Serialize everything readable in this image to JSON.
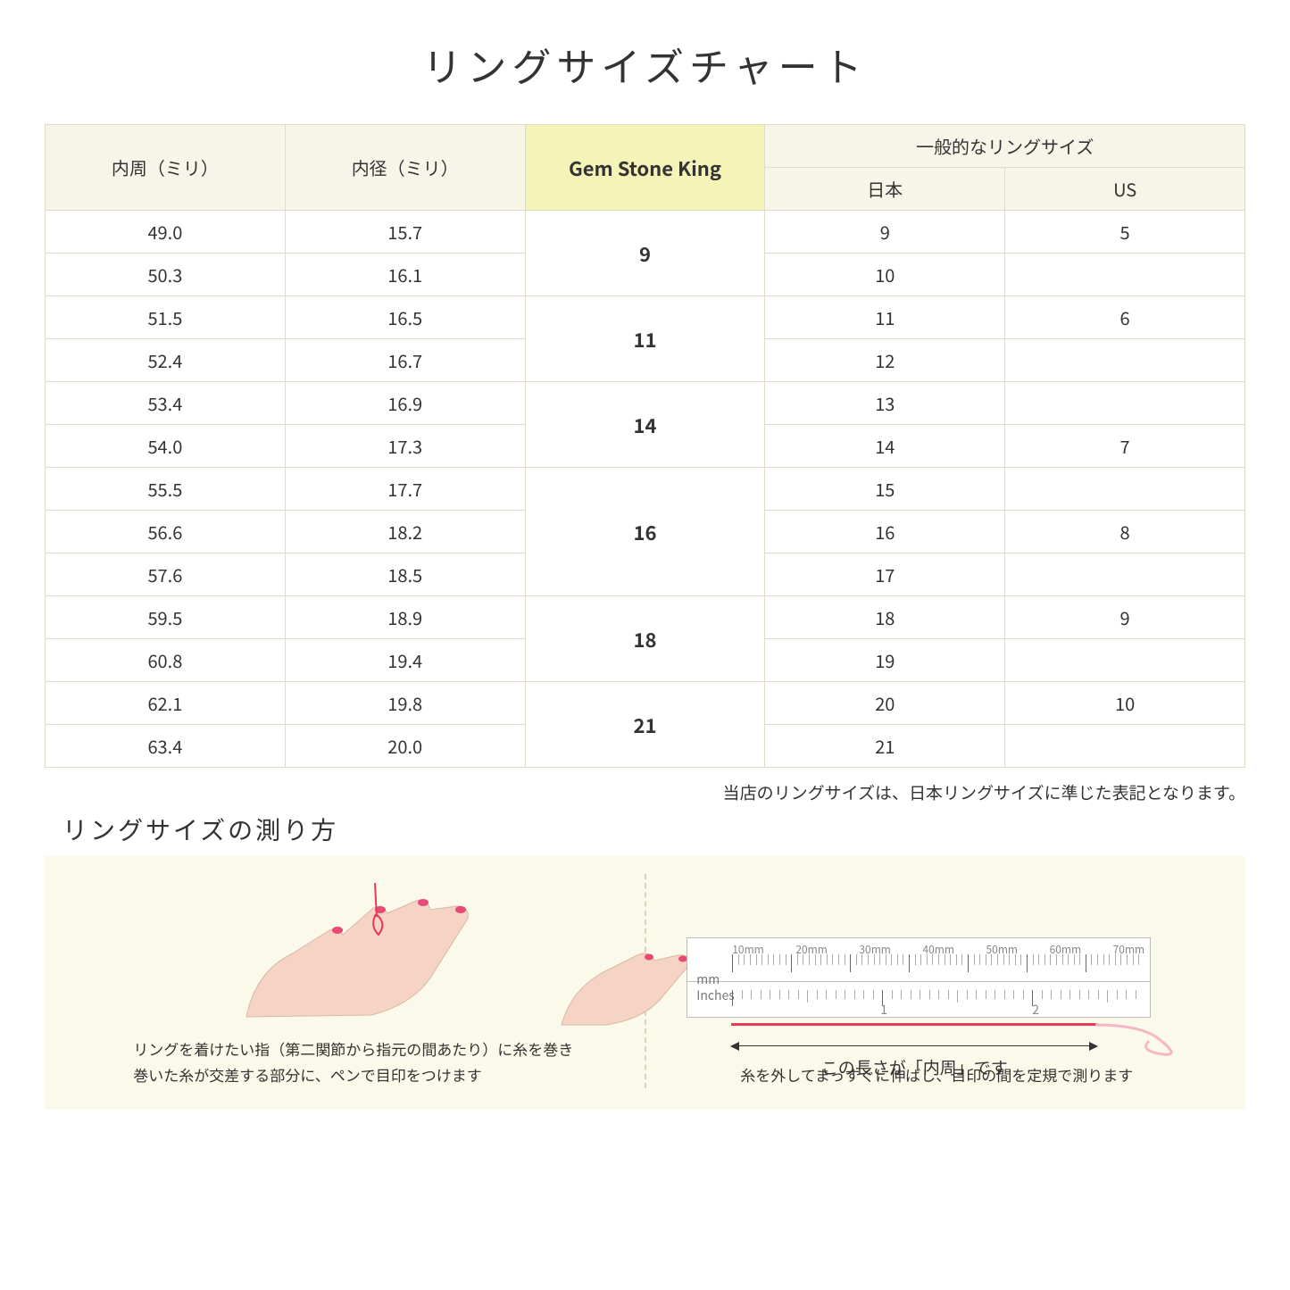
{
  "title": "リングサイズチャート",
  "headers": {
    "col1": "内周（ミリ）",
    "col2": "内径（ミリ）",
    "col3": "Gem Stone King",
    "col4_top": "一般的なリングサイズ",
    "col4_jp": "日本",
    "col4_us": "US"
  },
  "groups": [
    {
      "gsk": "9",
      "rows": [
        {
          "c": "49.0",
          "d": "15.7",
          "jp": "9",
          "us": "5"
        },
        {
          "c": "50.3",
          "d": "16.1",
          "jp": "10",
          "us": ""
        }
      ]
    },
    {
      "gsk": "11",
      "rows": [
        {
          "c": "51.5",
          "d": "16.5",
          "jp": "11",
          "us": "6"
        },
        {
          "c": "52.4",
          "d": "16.7",
          "jp": "12",
          "us": ""
        }
      ]
    },
    {
      "gsk": "14",
      "rows": [
        {
          "c": "53.4",
          "d": "16.9",
          "jp": "13",
          "us": ""
        },
        {
          "c": "54.0",
          "d": "17.3",
          "jp": "14",
          "us": "7"
        }
      ]
    },
    {
      "gsk": "16",
      "rows": [
        {
          "c": "55.5",
          "d": "17.7",
          "jp": "15",
          "us": ""
        },
        {
          "c": "56.6",
          "d": "18.2",
          "jp": "16",
          "us": "8"
        },
        {
          "c": "57.6",
          "d": "18.5",
          "jp": "17",
          "us": ""
        }
      ]
    },
    {
      "gsk": "18",
      "rows": [
        {
          "c": "59.5",
          "d": "18.9",
          "jp": "18",
          "us": "9"
        },
        {
          "c": "60.8",
          "d": "19.4",
          "jp": "19",
          "us": ""
        }
      ]
    },
    {
      "gsk": "21",
      "rows": [
        {
          "c": "62.1",
          "d": "19.8",
          "jp": "20",
          "us": "10"
        },
        {
          "c": "63.4",
          "d": "20.0",
          "jp": "21",
          "us": ""
        }
      ]
    }
  ],
  "note": "当店のリングサイズは、日本リングサイズに準じた表記となります。",
  "howto": {
    "title": "リングサイズの測り方",
    "left_line1": "リングを着けたい指（第二関節から指元の間あたり）に糸を巻き",
    "left_line2": "巻いた糸が交差する部分に、ペンで目印をつけます",
    "right_dim": "この長さが「内周」です",
    "right_caption": "糸を外してまっすぐに伸ばし、目印の間を定規で測ります",
    "ruler": {
      "mm_label": "mm",
      "in_label": "Inches",
      "mm_marks": [
        "10mm",
        "20mm",
        "30mm",
        "40mm",
        "50mm",
        "60mm",
        "70mm"
      ],
      "in_marks": [
        "1",
        "2"
      ]
    }
  },
  "colors": {
    "header_bg": "#f7f5e8",
    "gsk_bg": "#f4f3b8",
    "border": "#e0dcc8",
    "howto_bg": "#fbf9e9",
    "redline": "#e73a5a",
    "skin": "#f5d4c6",
    "nail": "#e84a77"
  }
}
